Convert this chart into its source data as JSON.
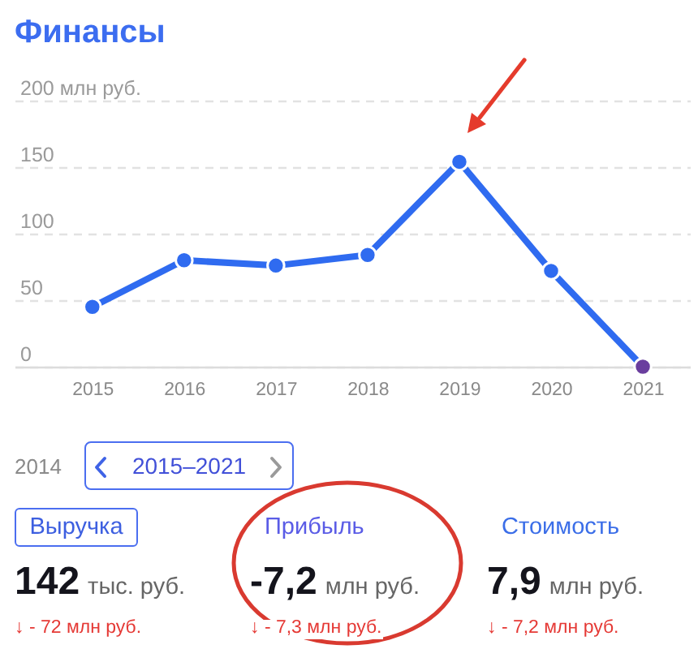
{
  "chart_data": [
    {
      "type": "line",
      "title": "Финансы",
      "categories": [
        "2015",
        "2016",
        "2017",
        "2018",
        "2019",
        "2020",
        "2021"
      ],
      "values": [
        45,
        80,
        76,
        84,
        154,
        72,
        0
      ],
      "color": "#2f6bf0",
      "colors": [
        "#2f6bf0",
        "#2f6bf0",
        "#2f6bf0",
        "#2f6bf0",
        "#2f6bf0",
        "#2f6bf0",
        "#6a3e9e"
      ],
      "ylim": [
        0,
        200
      ],
      "yticks": [
        0,
        50,
        100,
        150,
        {
          "value": 200,
          "label": "200 млн руб."
        }
      ],
      "grid": "y",
      "marker": "circle"
    },
    {
      "type": "other",
      "annotations": [
        "2014",
        "2015–2021",
        "Выручка",
        "Прибыль",
        "Стоимость",
        "142",
        "тыс. руб.",
        "-7,2",
        "млн руб.",
        "7,9",
        "млн руб.",
        "↓ - 72 млн руб.",
        "↓ - 7,3 млн руб.",
        "↓ - 7,2 млн руб."
      ]
    }
  ]
}
